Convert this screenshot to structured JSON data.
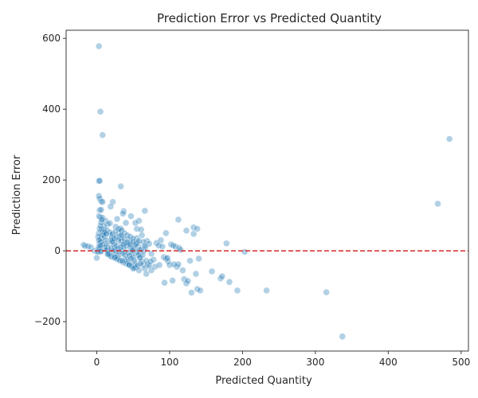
{
  "chart_data": {
    "type": "scatter",
    "title": "Prediction Error vs Predicted Quantity",
    "xlabel": "Predicted Quantity",
    "ylabel": "Prediction Error",
    "xlim": [
      -42,
      510
    ],
    "ylim": [
      -283,
      623
    ],
    "xticks": [
      0,
      100,
      200,
      300,
      400,
      500
    ],
    "yticks": [
      -200,
      0,
      200,
      400,
      600
    ],
    "xtick_labels": [
      "0",
      "100",
      "200",
      "300",
      "400",
      "500"
    ],
    "ytick_labels": [
      "−200",
      "0",
      "200",
      "400",
      "600"
    ],
    "grid": false,
    "point_color": "#1f77b4",
    "point_alpha": 0.35,
    "reference_line": {
      "y": 0,
      "color": "#d62728",
      "style": "dashed"
    },
    "points": [
      [
        3,
        578
      ],
      [
        5,
        393
      ],
      [
        8,
        327
      ],
      [
        484,
        316
      ],
      [
        468,
        133
      ],
      [
        3,
        197
      ],
      [
        4,
        198
      ],
      [
        33,
        182
      ],
      [
        3,
        155
      ],
      [
        4,
        148
      ],
      [
        6,
        140
      ],
      [
        8,
        138
      ],
      [
        22,
        138
      ],
      [
        19,
        125
      ],
      [
        37,
        112
      ],
      [
        36,
        105
      ],
      [
        66,
        113
      ],
      [
        4,
        115
      ],
      [
        6,
        116
      ],
      [
        3,
        98
      ],
      [
        5,
        95
      ],
      [
        8,
        93
      ],
      [
        12,
        85
      ],
      [
        15,
        75
      ],
      [
        47,
        98
      ],
      [
        28,
        90
      ],
      [
        58,
        85
      ],
      [
        53,
        79
      ],
      [
        40,
        79
      ],
      [
        18,
        78
      ],
      [
        26,
        68
      ],
      [
        33,
        63
      ],
      [
        55,
        62
      ],
      [
        61,
        60
      ],
      [
        112,
        88
      ],
      [
        123,
        57
      ],
      [
        133,
        66
      ],
      [
        138,
        62
      ],
      [
        133,
        48
      ],
      [
        95,
        50
      ],
      [
        178,
        21
      ],
      [
        203,
        -3
      ],
      [
        -18,
        17
      ],
      [
        -16,
        14
      ],
      [
        -12,
        13
      ],
      [
        -8,
        10
      ],
      [
        -3,
        0
      ],
      [
        0,
        -20
      ],
      [
        1,
        -3
      ],
      [
        2,
        5
      ],
      [
        3,
        12
      ],
      [
        4,
        20
      ],
      [
        5,
        28
      ],
      [
        6,
        35
      ],
      [
        7,
        42
      ],
      [
        8,
        50
      ],
      [
        9,
        55
      ],
      [
        10,
        60
      ],
      [
        11,
        40
      ],
      [
        12,
        30
      ],
      [
        13,
        22
      ],
      [
        14,
        15
      ],
      [
        15,
        8
      ],
      [
        16,
        2
      ],
      [
        17,
        -5
      ],
      [
        18,
        -10
      ],
      [
        19,
        -14
      ],
      [
        20,
        45
      ],
      [
        21,
        38
      ],
      [
        22,
        32
      ],
      [
        23,
        26
      ],
      [
        24,
        18
      ],
      [
        25,
        10
      ],
      [
        26,
        3
      ],
      [
        27,
        -6
      ],
      [
        28,
        -12
      ],
      [
        29,
        -18
      ],
      [
        30,
        -22
      ],
      [
        31,
        50
      ],
      [
        32,
        42
      ],
      [
        33,
        35
      ],
      [
        34,
        28
      ],
      [
        35,
        20
      ],
      [
        36,
        12
      ],
      [
        37,
        4
      ],
      [
        38,
        -4
      ],
      [
        39,
        -12
      ],
      [
        40,
        -20
      ],
      [
        41,
        -26
      ],
      [
        42,
        -30
      ],
      [
        43,
        -35
      ],
      [
        44,
        30
      ],
      [
        45,
        22
      ],
      [
        46,
        14
      ],
      [
        47,
        6
      ],
      [
        48,
        -2
      ],
      [
        49,
        -10
      ],
      [
        50,
        -18
      ],
      [
        51,
        -26
      ],
      [
        52,
        -33
      ],
      [
        53,
        -40
      ],
      [
        54,
        -46
      ],
      [
        55,
        36
      ],
      [
        56,
        24
      ],
      [
        57,
        12
      ],
      [
        58,
        2
      ],
      [
        59,
        -8
      ],
      [
        60,
        -18
      ],
      [
        62,
        -30
      ],
      [
        64,
        -40
      ],
      [
        66,
        -50
      ],
      [
        68,
        -65
      ],
      [
        10,
        70
      ],
      [
        14,
        58
      ],
      [
        18,
        52
      ],
      [
        22,
        48
      ],
      [
        26,
        55
      ],
      [
        30,
        62
      ],
      [
        34,
        58
      ],
      [
        38,
        50
      ],
      [
        42,
        44
      ],
      [
        46,
        40
      ],
      [
        50,
        34
      ],
      [
        6,
        25
      ],
      [
        8,
        18
      ],
      [
        11,
        10
      ],
      [
        13,
        2
      ],
      [
        16,
        -8
      ],
      [
        20,
        -16
      ],
      [
        24,
        -20
      ],
      [
        28,
        -24
      ],
      [
        32,
        -28
      ],
      [
        36,
        -32
      ],
      [
        40,
        -36
      ],
      [
        44,
        -40
      ],
      [
        48,
        -44
      ],
      [
        52,
        -48
      ],
      [
        56,
        -42
      ],
      [
        60,
        -36
      ],
      [
        63,
        -12
      ],
      [
        65,
        0
      ],
      [
        67,
        10
      ],
      [
        69,
        28
      ],
      [
        72,
        20
      ],
      [
        75,
        -8
      ],
      [
        78,
        -25
      ],
      [
        80,
        -45
      ],
      [
        82,
        22
      ],
      [
        85,
        15
      ],
      [
        88,
        30
      ],
      [
        90,
        12
      ],
      [
        92,
        -18
      ],
      [
        95,
        -22
      ],
      [
        98,
        -30
      ],
      [
        100,
        -40
      ],
      [
        102,
        18
      ],
      [
        105,
        15
      ],
      [
        108,
        12
      ],
      [
        110,
        -45
      ],
      [
        113,
        8
      ],
      [
        115,
        3
      ],
      [
        118,
        -55
      ],
      [
        120,
        -80
      ],
      [
        123,
        -92
      ],
      [
        125,
        -85
      ],
      [
        128,
        -28
      ],
      [
        130,
        -118
      ],
      [
        136,
        -65
      ],
      [
        138,
        -108
      ],
      [
        140,
        -22
      ],
      [
        142,
        -112
      ],
      [
        158,
        -58
      ],
      [
        170,
        -78
      ],
      [
        172,
        -72
      ],
      [
        182,
        -88
      ],
      [
        193,
        -112
      ],
      [
        233,
        -112
      ],
      [
        315,
        -117
      ],
      [
        337,
        -242
      ],
      [
        93,
        -90
      ],
      [
        104,
        -84
      ],
      [
        112,
        -38
      ],
      [
        75,
        -55
      ],
      [
        68,
        -28
      ],
      [
        58,
        -55
      ],
      [
        50,
        -50
      ],
      [
        45,
        -40
      ],
      [
        35,
        -28
      ],
      [
        25,
        -18
      ],
      [
        15,
        -10
      ],
      [
        5,
        -3
      ],
      [
        2,
        -2
      ],
      [
        7,
        60
      ],
      [
        9,
        45
      ],
      [
        11,
        52
      ],
      [
        13,
        48
      ],
      [
        20,
        8
      ],
      [
        23,
        0
      ],
      [
        27,
        15
      ],
      [
        29,
        6
      ],
      [
        31,
        -2
      ],
      [
        33,
        10
      ],
      [
        35,
        -8
      ],
      [
        37,
        18
      ],
      [
        39,
        22
      ],
      [
        41,
        14
      ],
      [
        43,
        -6
      ],
      [
        45,
        -14
      ],
      [
        47,
        -22
      ],
      [
        49,
        2
      ],
      [
        51,
        8
      ],
      [
        53,
        16
      ],
      [
        55,
        -4
      ],
      [
        57,
        -12
      ],
      [
        59,
        -20
      ],
      [
        61,
        4
      ],
      [
        3,
        50
      ],
      [
        4,
        62
      ],
      [
        5,
        70
      ],
      [
        6,
        80
      ],
      [
        7,
        88
      ],
      [
        2,
        40
      ],
      [
        3,
        30
      ],
      [
        4,
        8
      ],
      [
        5,
        15
      ],
      [
        6,
        -1
      ],
      [
        19,
        30
      ],
      [
        21,
        25
      ],
      [
        24,
        34
      ],
      [
        27,
        40
      ],
      [
        30,
        30
      ],
      [
        34,
        44
      ],
      [
        38,
        34
      ],
      [
        42,
        24
      ],
      [
        46,
        18
      ],
      [
        50,
        26
      ],
      [
        54,
        20
      ],
      [
        58,
        28
      ],
      [
        62,
        44
      ],
      [
        64,
        25
      ],
      [
        66,
        14
      ],
      [
        70,
        -38
      ],
      [
        72,
        -42
      ],
      [
        74,
        -30
      ],
      [
        86,
        -40
      ],
      [
        97,
        -20
      ],
      [
        106,
        -38
      ]
    ]
  }
}
